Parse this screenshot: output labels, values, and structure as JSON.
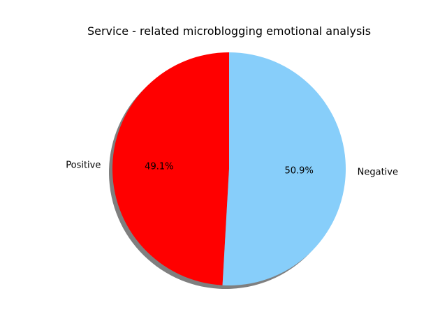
{
  "chart_data": {
    "type": "pie",
    "title": "Service - related microblogging emotional analysis",
    "categories": [
      "Positive",
      "Negative"
    ],
    "values": [
      49.1,
      50.9
    ],
    "percent_labels": [
      "49.1%",
      "50.9%"
    ],
    "colors": [
      "#ff0000",
      "#87cefa"
    ],
    "start_angle_deg": 90,
    "direction": "counterclockwise",
    "shadow": true,
    "legend": "none"
  }
}
